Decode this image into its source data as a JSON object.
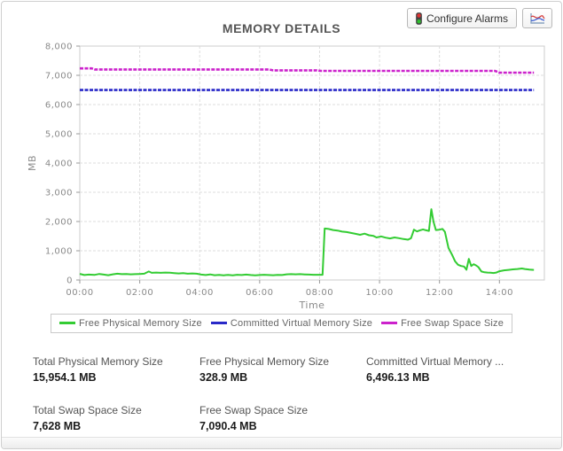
{
  "header": {
    "title": "MEMORY DETAILS",
    "configure_alarms_label": "Configure Alarms"
  },
  "chart_data": {
    "type": "line",
    "title": "MEMORY DETAILS",
    "xlabel": "Time",
    "ylabel": "MB",
    "xlim": [
      0,
      15.5
    ],
    "ylim": [
      0,
      8000
    ],
    "grid": true,
    "legend_position": "bottom",
    "xticks": {
      "values": [
        0,
        2,
        4,
        6,
        8,
        10,
        12,
        14
      ],
      "labels": [
        "00:00",
        "02:00",
        "04:00",
        "06:00",
        "08:00",
        "10:00",
        "12:00",
        "14:00"
      ]
    },
    "yticks": {
      "values": [
        0,
        1000,
        2000,
        3000,
        4000,
        5000,
        6000,
        7000,
        8000
      ],
      "labels": [
        "0",
        "1,000",
        "2,000",
        "3,000",
        "4,000",
        "5,000",
        "6,000",
        "7,000",
        "8,000"
      ]
    },
    "series": [
      {
        "name": "Free Physical Memory Size",
        "color": "#33cc33",
        "style": "solid",
        "points": [
          [
            0,
            210
          ],
          [
            0.15,
            170
          ],
          [
            0.3,
            185
          ],
          [
            0.5,
            175
          ],
          [
            0.65,
            205
          ],
          [
            0.8,
            185
          ],
          [
            0.95,
            165
          ],
          [
            1.1,
            195
          ],
          [
            1.25,
            215
          ],
          [
            1.4,
            200
          ],
          [
            1.55,
            205
          ],
          [
            1.7,
            195
          ],
          [
            1.85,
            200
          ],
          [
            2.0,
            205
          ],
          [
            2.15,
            215
          ],
          [
            2.3,
            290
          ],
          [
            2.4,
            245
          ],
          [
            2.55,
            255
          ],
          [
            2.7,
            245
          ],
          [
            2.85,
            255
          ],
          [
            3.0,
            250
          ],
          [
            3.15,
            235
          ],
          [
            3.3,
            225
          ],
          [
            3.45,
            235
          ],
          [
            3.6,
            215
          ],
          [
            3.75,
            225
          ],
          [
            3.9,
            215
          ],
          [
            4.05,
            185
          ],
          [
            4.2,
            170
          ],
          [
            4.35,
            190
          ],
          [
            4.5,
            165
          ],
          [
            4.65,
            175
          ],
          [
            4.8,
            160
          ],
          [
            4.95,
            175
          ],
          [
            5.1,
            160
          ],
          [
            5.25,
            180
          ],
          [
            5.4,
            170
          ],
          [
            5.55,
            185
          ],
          [
            5.7,
            170
          ],
          [
            5.85,
            160
          ],
          [
            6.0,
            170
          ],
          [
            6.15,
            180
          ],
          [
            6.3,
            170
          ],
          [
            6.45,
            165
          ],
          [
            6.6,
            175
          ],
          [
            6.75,
            170
          ],
          [
            6.9,
            195
          ],
          [
            7.05,
            200
          ],
          [
            7.2,
            195
          ],
          [
            7.35,
            200
          ],
          [
            7.5,
            190
          ],
          [
            7.65,
            185
          ],
          [
            7.8,
            180
          ],
          [
            7.95,
            180
          ],
          [
            8.1,
            180
          ],
          [
            8.17,
            1760
          ],
          [
            8.3,
            1745
          ],
          [
            8.45,
            1710
          ],
          [
            8.6,
            1690
          ],
          [
            8.75,
            1655
          ],
          [
            8.9,
            1640
          ],
          [
            9.05,
            1610
          ],
          [
            9.2,
            1580
          ],
          [
            9.35,
            1545
          ],
          [
            9.5,
            1585
          ],
          [
            9.65,
            1530
          ],
          [
            9.8,
            1505
          ],
          [
            9.9,
            1455
          ],
          [
            10.05,
            1490
          ],
          [
            10.2,
            1450
          ],
          [
            10.35,
            1420
          ],
          [
            10.5,
            1455
          ],
          [
            10.65,
            1430
          ],
          [
            10.8,
            1400
          ],
          [
            10.95,
            1380
          ],
          [
            11.05,
            1430
          ],
          [
            11.15,
            1720
          ],
          [
            11.25,
            1660
          ],
          [
            11.35,
            1700
          ],
          [
            11.45,
            1730
          ],
          [
            11.55,
            1700
          ],
          [
            11.65,
            1680
          ],
          [
            11.73,
            2420
          ],
          [
            11.8,
            2000
          ],
          [
            11.88,
            1710
          ],
          [
            12.0,
            1720
          ],
          [
            12.1,
            1745
          ],
          [
            12.18,
            1650
          ],
          [
            12.3,
            1100
          ],
          [
            12.42,
            860
          ],
          [
            12.52,
            640
          ],
          [
            12.62,
            520
          ],
          [
            12.72,
            480
          ],
          [
            12.82,
            460
          ],
          [
            12.9,
            350
          ],
          [
            12.98,
            720
          ],
          [
            13.06,
            480
          ],
          [
            13.14,
            540
          ],
          [
            13.22,
            500
          ],
          [
            13.3,
            440
          ],
          [
            13.4,
            290
          ],
          [
            13.5,
            265
          ],
          [
            13.6,
            255
          ],
          [
            13.7,
            250
          ],
          [
            13.8,
            240
          ],
          [
            13.9,
            255
          ],
          [
            14.0,
            300
          ],
          [
            14.15,
            330
          ],
          [
            14.3,
            345
          ],
          [
            14.45,
            365
          ],
          [
            14.6,
            375
          ],
          [
            14.75,
            395
          ],
          [
            14.85,
            375
          ],
          [
            15.0,
            355
          ],
          [
            15.15,
            345
          ]
        ]
      },
      {
        "name": "Committed Virtual Memory Size",
        "color": "#2929c8",
        "style": "marker",
        "points": [
          [
            0,
            6496
          ],
          [
            15.15,
            6496
          ]
        ]
      },
      {
        "name": "Free Swap Space Size",
        "color": "#cc22cc",
        "style": "marker",
        "points": [
          [
            0,
            7235
          ],
          [
            0.4,
            7235
          ],
          [
            0.5,
            7200
          ],
          [
            6.3,
            7200
          ],
          [
            6.45,
            7170
          ],
          [
            7.9,
            7170
          ],
          [
            8.05,
            7150
          ],
          [
            13.85,
            7150
          ],
          [
            14.0,
            7090
          ],
          [
            15.15,
            7090
          ]
        ]
      }
    ]
  },
  "stats": [
    {
      "label": "Total Physical Memory Size",
      "value": "15,954.1 MB"
    },
    {
      "label": "Free Physical Memory Size",
      "value": "328.9 MB"
    },
    {
      "label": "Committed Virtual Memory ...",
      "value": "6,496.13 MB"
    },
    {
      "label": "Total Swap Space Size",
      "value": "7,628 MB"
    },
    {
      "label": "Free Swap Space Size",
      "value": "7,090.4 MB"
    }
  ]
}
